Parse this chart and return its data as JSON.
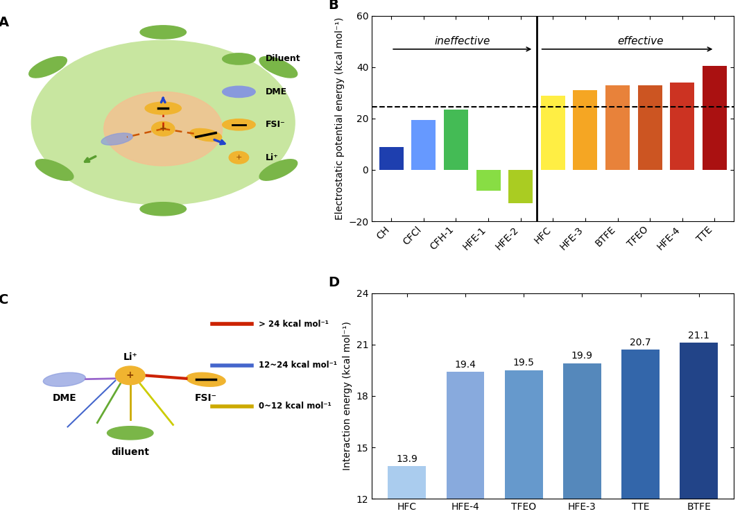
{
  "panel_B": {
    "categories": [
      "CH",
      "CFCl",
      "CFH-1",
      "HFE-1",
      "HFE-2",
      "HFC",
      "HFE-3",
      "BTFE",
      "TFEO",
      "HFE-4",
      "TTE"
    ],
    "values": [
      9,
      19.5,
      23.5,
      -8,
      -13,
      29,
      31,
      33,
      33,
      34,
      40.5
    ],
    "colors": [
      "#1e3faf",
      "#6699ff",
      "#44bb55",
      "#88dd44",
      "#aacc22",
      "#ffee44",
      "#f5a623",
      "#e8823a",
      "#cc5522",
      "#cc3322",
      "#aa1111"
    ],
    "dashed_line": 24.5,
    "ylabel": "Electrostatic potential energy (kcal mol⁻¹)",
    "ylim": [
      -20,
      60
    ],
    "yticks": [
      -20,
      0,
      20,
      40,
      60
    ],
    "ineffective_label": "ineffective",
    "effective_label": "effective",
    "divider_index": 5,
    "label": "B"
  },
  "panel_D": {
    "categories": [
      "HFC",
      "HFE-4",
      "TFEO",
      "HFE-3",
      "TTE",
      "BTFE"
    ],
    "values": [
      13.9,
      19.4,
      19.5,
      19.9,
      20.7,
      21.1
    ],
    "colors": [
      "#aaccee",
      "#88aadd",
      "#6699cc",
      "#5588bb",
      "#3366aa",
      "#224488"
    ],
    "ylabel": "Interaction energy (kcal mol⁻¹)",
    "ylim": [
      12,
      24
    ],
    "yticks": [
      12,
      15,
      18,
      21,
      24
    ],
    "label": "D"
  },
  "panel_A_label": "A",
  "panel_C_label": "C"
}
